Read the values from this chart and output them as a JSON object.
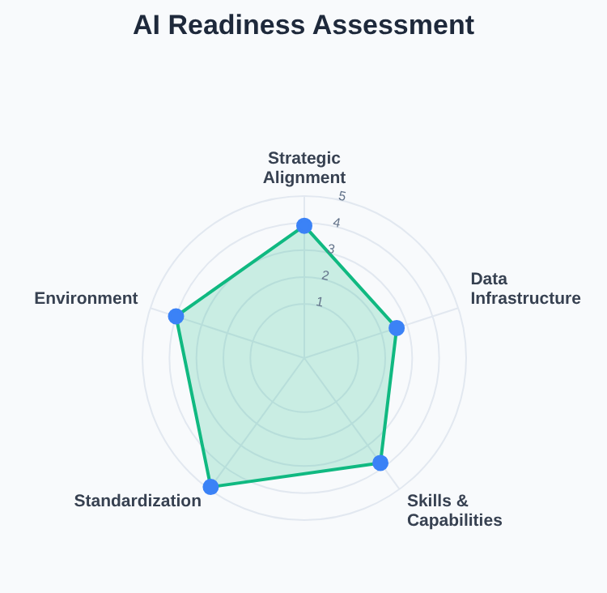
{
  "chart_data": {
    "type": "radar",
    "title": "AI Readiness Assessment",
    "categories": [
      "Strategic Alignment",
      "Data Infrastructure",
      "Skills & Capabilities",
      "Standardization",
      "Environment"
    ],
    "series": [
      {
        "color": "#10b981",
        "values": [
          3.9,
          2.6,
          3.8,
          4.9,
          4.0
        ]
      }
    ],
    "ylim": [
      -1,
      5
    ],
    "yticks": [
      1,
      2,
      3,
      4,
      5
    ],
    "grid": true,
    "marker": "circle"
  }
}
